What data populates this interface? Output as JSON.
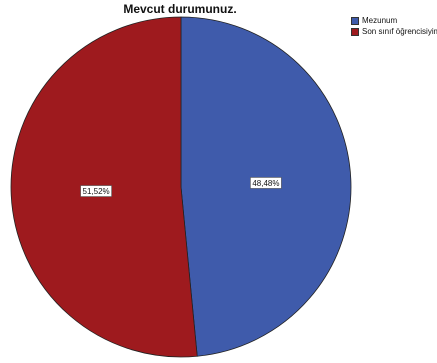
{
  "chart_data": {
    "type": "pie",
    "title": "Mevcut durumunuz.",
    "categories": [
      "Mezunum",
      "Son sınıf öğrencisiyim"
    ],
    "values": [
      48.48,
      51.52
    ],
    "data_labels": [
      "48,48%",
      "51,52%"
    ],
    "colors": [
      "#3F5BAB",
      "#9E1A1E"
    ],
    "legend_position": "top-right"
  },
  "legend": {
    "items": [
      {
        "label": "Mezunum",
        "color": "#3F5BAB"
      },
      {
        "label": "Son sınıf öğrencisiyim",
        "color": "#9E1A1E"
      }
    ]
  }
}
